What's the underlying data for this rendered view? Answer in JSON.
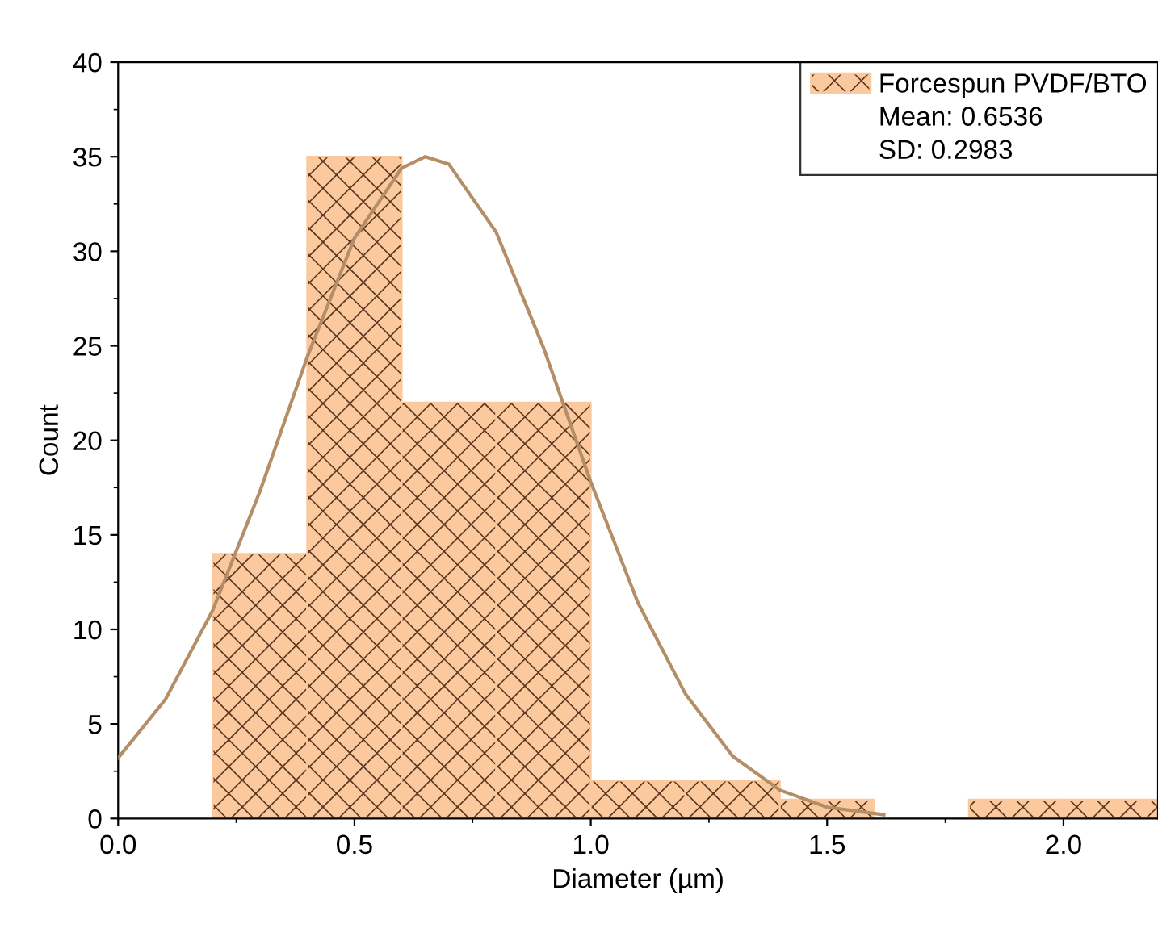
{
  "chart_data": {
    "type": "histogram",
    "xlabel": "Diameter (µm)",
    "ylabel": "Count",
    "bins": [
      0.2,
      0.4,
      0.6,
      0.8,
      1.0,
      1.2,
      1.4,
      1.6,
      1.8,
      2.0,
      2.2
    ],
    "series": [
      {
        "type": "histogram",
        "name": "Forcespun PVDF/BTO",
        "color": "#fcc99e",
        "values": [
          14,
          35,
          22,
          22,
          2,
          2,
          1,
          0,
          1,
          1
        ]
      },
      {
        "type": "line",
        "color": "#b38e66",
        "x": [
          0,
          0.1,
          0.2,
          0.3,
          0.4,
          0.5,
          0.6,
          0.65,
          0.7,
          0.8,
          0.9,
          1.0,
          1.1,
          1.2,
          1.3,
          1.4,
          1.5,
          1.62
        ],
        "values": [
          3.2,
          6.3,
          11.0,
          17.3,
          24.4,
          30.7,
          34.4,
          35,
          34.6,
          31.0,
          24.9,
          17.8,
          11.4,
          6.6,
          3.3,
          1.5,
          0.6,
          0.2
        ]
      }
    ],
    "annotations": [
      "Mean: 0.6536",
      "SD: 0.2983"
    ],
    "xlim": [
      0,
      2.2
    ],
    "ylim": [
      0,
      40
    ],
    "xticks": [
      {
        "value": 0,
        "label": "0.0"
      },
      {
        "value": 0.5,
        "label": "0.5"
      },
      {
        "value": 1.0,
        "label": "1.0"
      },
      {
        "value": 1.5,
        "label": "1.5"
      },
      {
        "value": 2.0,
        "label": "2.0"
      }
    ],
    "yticks": [
      0,
      5,
      10,
      15,
      20,
      25,
      30,
      35,
      40
    ],
    "legend": "top right",
    "grid": false
  }
}
